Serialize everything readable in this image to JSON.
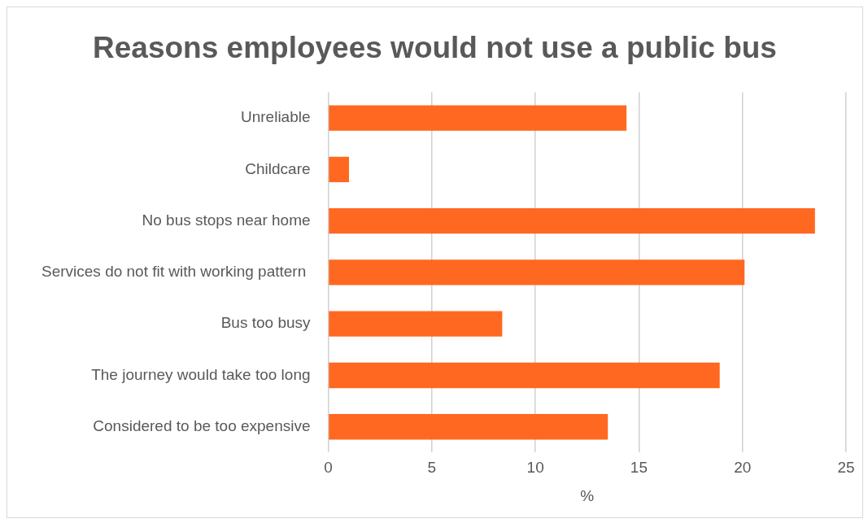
{
  "chart_data": {
    "type": "bar",
    "orientation": "horizontal",
    "title": "Reasons employees would not use a public bus",
    "xlabel": "%",
    "categories": [
      "Unreliable",
      "Childcare",
      "No bus stops near home",
      "Services do not fit with working pattern ",
      "Bus too busy",
      "The journey would take too long",
      "Considered to be too expensive"
    ],
    "values": [
      14.4,
      1.0,
      23.5,
      20.1,
      8.4,
      18.9,
      13.5
    ],
    "color": "#ff6820",
    "xlim": [
      0,
      25
    ],
    "xticks": [
      0,
      5,
      10,
      15,
      20,
      25
    ],
    "grid": "x",
    "legend": false
  }
}
